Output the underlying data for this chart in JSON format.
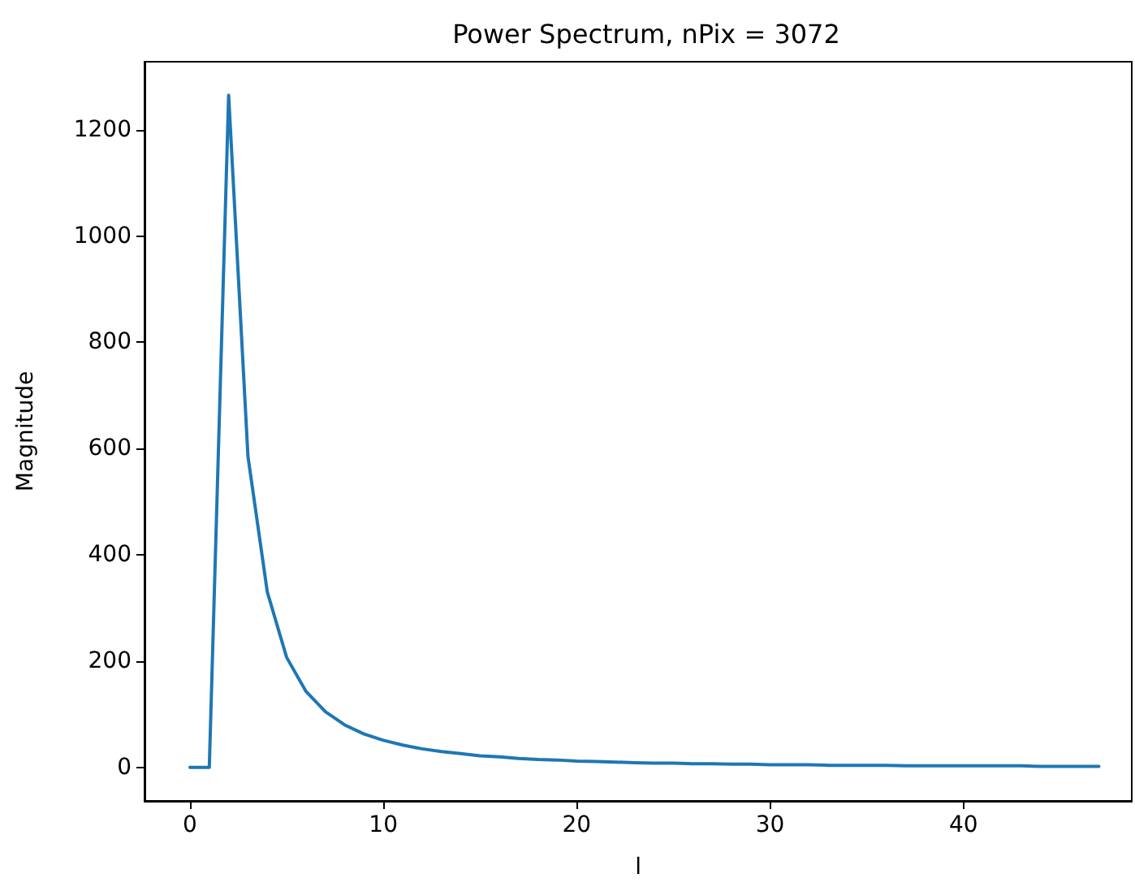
{
  "chart_data": {
    "type": "line",
    "title": "Power Spectrum, nPix = 3072",
    "xlabel": "l",
    "ylabel": "Magnitude",
    "grid": false,
    "marker": "none",
    "line_style": "solid",
    "xlim": [
      -2.35,
      48.7
    ],
    "xticks": [
      0,
      10,
      20,
      30,
      40
    ],
    "ylim": [
      -63,
      1328
    ],
    "yticks": [
      0,
      200,
      400,
      600,
      800,
      1000,
      1200
    ],
    "series": [
      {
        "color": "#1f77b4",
        "x": [
          0,
          1,
          2,
          3,
          4,
          5,
          6,
          7,
          8,
          9,
          10,
          11,
          12,
          13,
          14,
          15,
          16,
          17,
          18,
          19,
          20,
          21,
          22,
          23,
          24,
          25,
          26,
          27,
          28,
          29,
          30,
          31,
          32,
          33,
          34,
          35,
          36,
          37,
          38,
          39,
          40,
          41,
          42,
          43,
          44,
          45,
          46,
          47
        ],
        "values": [
          0,
          0,
          1265,
          585,
          330,
          207,
          143,
          105,
          80,
          63,
          51,
          42,
          35,
          30,
          26,
          22,
          20,
          17,
          15,
          14,
          12,
          11,
          10,
          9,
          8,
          8,
          7,
          7,
          6,
          6,
          5,
          5,
          5,
          4,
          4,
          4,
          4,
          3,
          3,
          3,
          3,
          3,
          3,
          3,
          2,
          2,
          2,
          2
        ]
      }
    ]
  }
}
